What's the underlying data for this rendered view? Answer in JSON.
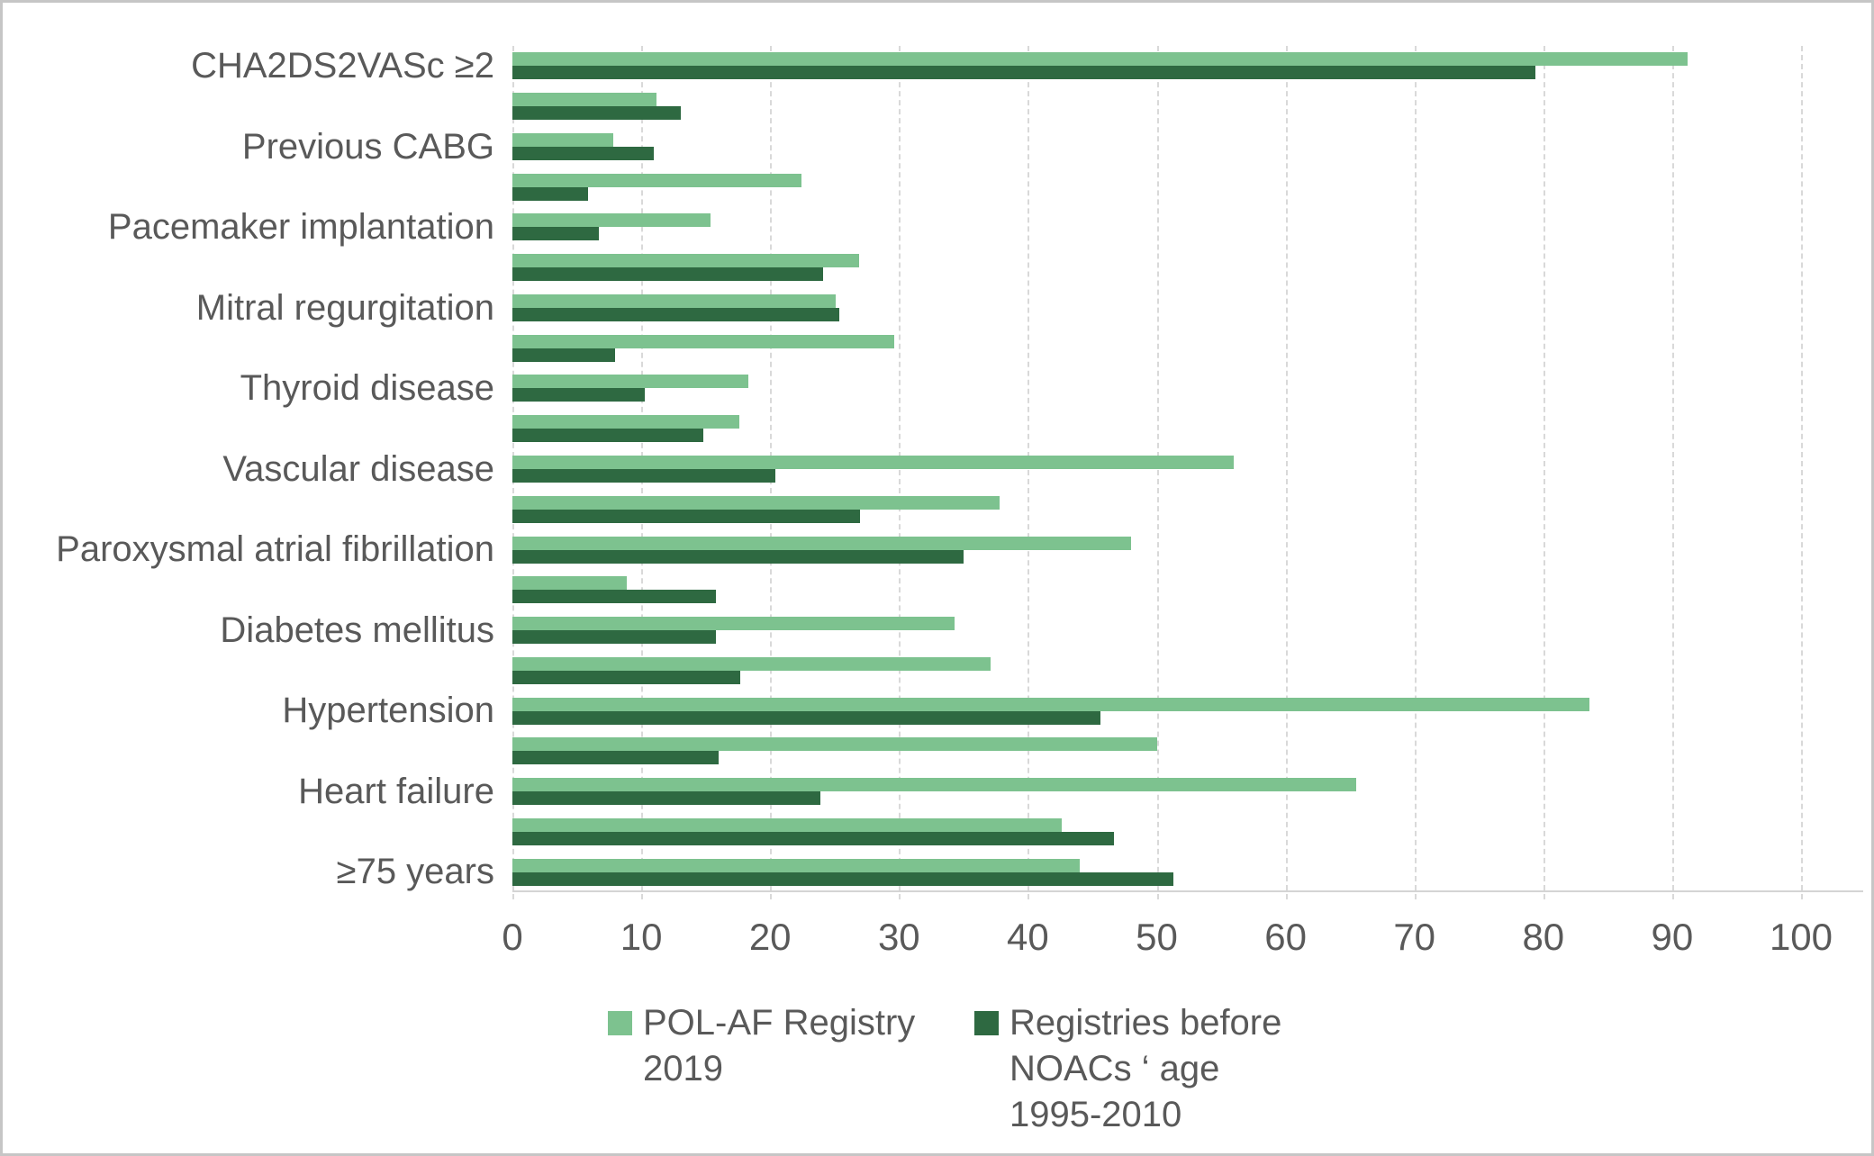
{
  "chart_data": {
    "type": "bar",
    "orientation": "horizontal",
    "title": "",
    "xlabel": "",
    "ylabel": "",
    "xlim": [
      0,
      100
    ],
    "xticks": [
      0,
      10,
      20,
      30,
      40,
      50,
      60,
      70,
      80,
      90,
      100
    ],
    "grid": "vertical-dashed",
    "legend_position": "bottom",
    "category_label_interval": 2,
    "categories": [
      "CHA2DS2VASc ≥2",
      "",
      "Previous CABG",
      "",
      "Pacemaker implantation",
      "",
      "Mitral regurgitation",
      "",
      "Thyroid disease",
      "",
      "Vascular disease",
      "",
      "Paroxysmal atrial fibrillation",
      "",
      "Diabetes mellitus",
      "",
      "Hypertension",
      "",
      "Heart failure",
      "",
      "≥75 years"
    ],
    "series": [
      {
        "name": "POL-AF Registry 2019",
        "color": "#7dc28f",
        "values": [
          91.2,
          11.2,
          7.8,
          22.4,
          15.4,
          26.9,
          25.1,
          29.6,
          18.3,
          17.6,
          56.0,
          37.8,
          48.0,
          8.9,
          34.3,
          37.1,
          83.6,
          50.0,
          65.5,
          42.6,
          44.0
        ]
      },
      {
        "name": "Registries before NOACs ‘ age 1995-2010",
        "color": "#2e6941",
        "values": [
          79.4,
          13.1,
          11.0,
          5.9,
          6.7,
          24.1,
          25.4,
          8.0,
          10.3,
          14.8,
          20.4,
          27.0,
          35.0,
          15.8,
          15.8,
          17.7,
          45.6,
          16.0,
          23.9,
          46.7,
          51.3
        ]
      }
    ],
    "legend": [
      {
        "label": "POL-AF Registry\n2019",
        "color": "#7dc28f"
      },
      {
        "label": "Registries before\nNOACs ‘ age\n1995-2010",
        "color": "#2e6941"
      }
    ]
  },
  "colors": {
    "series_light": "#7dc28f",
    "series_dark": "#2e6941",
    "gridline": "#d9d9d9",
    "axis_line": "#d4d4d4",
    "text": "#595959",
    "canvas_border": "#c6c6c6"
  }
}
